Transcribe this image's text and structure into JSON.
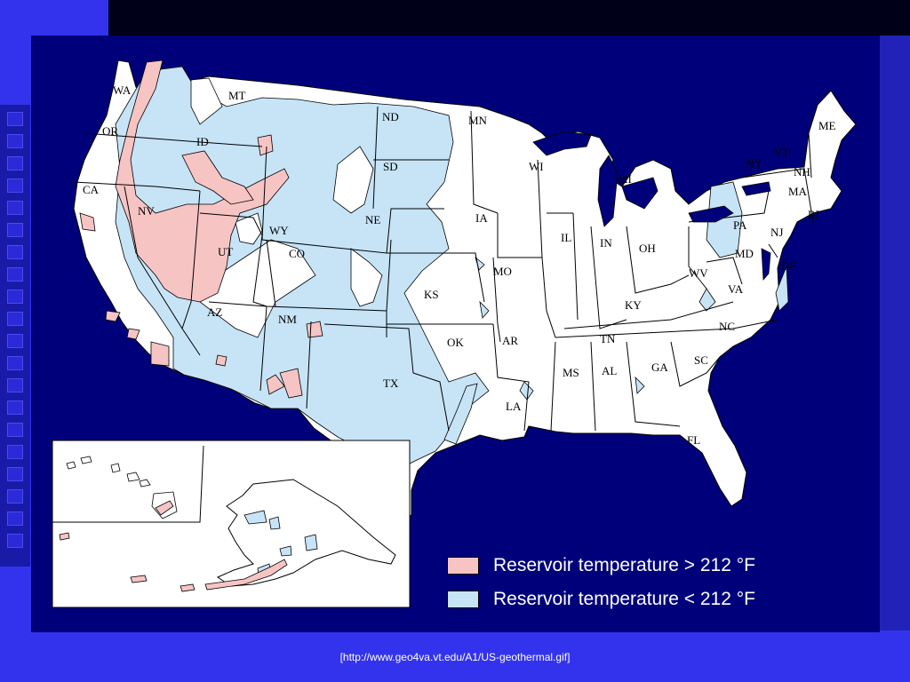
{
  "map": {
    "colors": {
      "background": "#00007a",
      "land": "#ffffff",
      "high_temp": "#f7c4c4",
      "low_temp": "#c7e4f7",
      "border": "#000000"
    },
    "states": [
      {
        "abbr": "WA"
      },
      {
        "abbr": "OR"
      },
      {
        "abbr": "CA"
      },
      {
        "abbr": "NV"
      },
      {
        "abbr": "ID"
      },
      {
        "abbr": "MT"
      },
      {
        "abbr": "WY"
      },
      {
        "abbr": "UT"
      },
      {
        "abbr": "AZ"
      },
      {
        "abbr": "CO"
      },
      {
        "abbr": "NM"
      },
      {
        "abbr": "ND"
      },
      {
        "abbr": "SD"
      },
      {
        "abbr": "NE"
      },
      {
        "abbr": "KS"
      },
      {
        "abbr": "OK"
      },
      {
        "abbr": "TX"
      },
      {
        "abbr": "MN"
      },
      {
        "abbr": "IA"
      },
      {
        "abbr": "MO"
      },
      {
        "abbr": "AR"
      },
      {
        "abbr": "LA"
      },
      {
        "abbr": "WI"
      },
      {
        "abbr": "IL"
      },
      {
        "abbr": "MI"
      },
      {
        "abbr": "IN"
      },
      {
        "abbr": "OH"
      },
      {
        "abbr": "KY"
      },
      {
        "abbr": "TN"
      },
      {
        "abbr": "MS"
      },
      {
        "abbr": "AL"
      },
      {
        "abbr": "GA"
      },
      {
        "abbr": "FL"
      },
      {
        "abbr": "SC"
      },
      {
        "abbr": "NC"
      },
      {
        "abbr": "VA"
      },
      {
        "abbr": "WV"
      },
      {
        "abbr": "PA"
      },
      {
        "abbr": "NY"
      },
      {
        "abbr": "MD"
      },
      {
        "abbr": "DE"
      },
      {
        "abbr": "NJ"
      },
      {
        "abbr": "VT"
      },
      {
        "abbr": "NH"
      },
      {
        "abbr": "MA"
      },
      {
        "abbr": "RI"
      },
      {
        "abbr": "ME"
      }
    ]
  },
  "legend": {
    "high_label": "Reservoir temperature > 212 °F",
    "low_label": "Reservoir temperature < 212 °F"
  },
  "caption": "[http://www.geo4va.vt.edu/A1/US-geothermal.gif]"
}
